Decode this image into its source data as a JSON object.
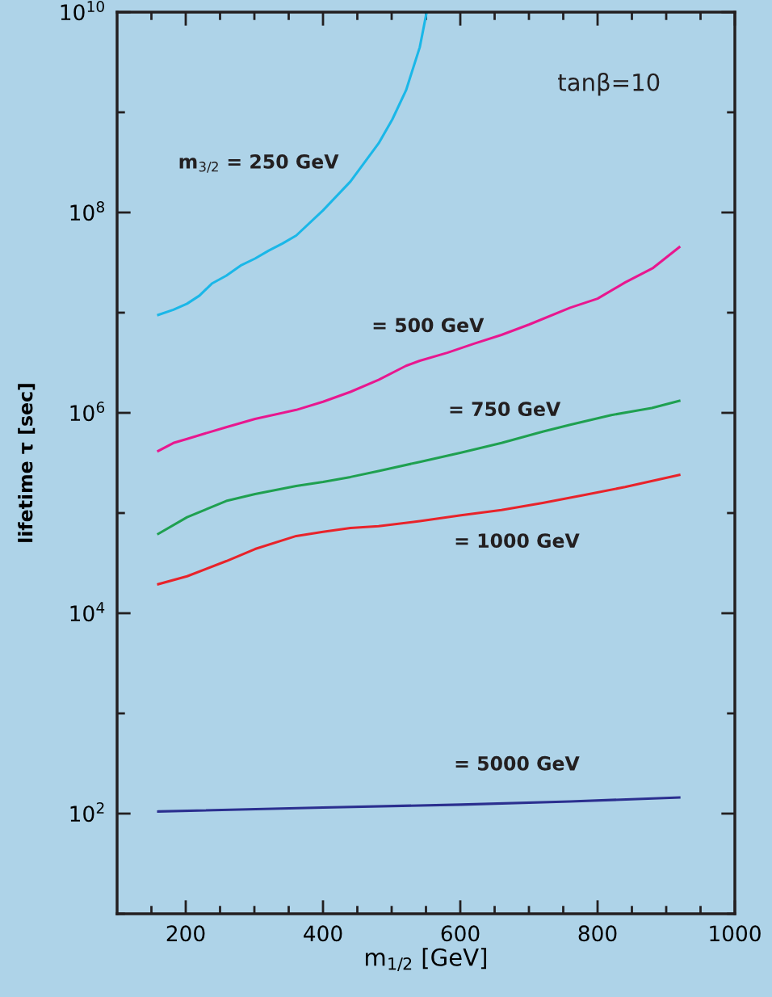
{
  "chart_data": {
    "type": "line",
    "xlabel": "m$_{1/2}$ [GeV]",
    "ylabel": "lifetime τ [sec]",
    "log": "y",
    "grid": false,
    "legend": false,
    "marker": "none",
    "line_style": "solid",
    "xlim": [
      100,
      1000
    ],
    "xticks": [
      {
        "value": 150,
        "label": null
      },
      200,
      {
        "value": 250,
        "label": null
      },
      {
        "value": 300,
        "label": null
      },
      {
        "value": 350,
        "label": null
      },
      400,
      {
        "value": 450,
        "label": null
      },
      {
        "value": 500,
        "label": null
      },
      {
        "value": 550,
        "label": null
      },
      600,
      {
        "value": 650,
        "label": null
      },
      {
        "value": 700,
        "label": null
      },
      {
        "value": 750,
        "label": null
      },
      800,
      {
        "value": 850,
        "label": null
      },
      {
        "value": 900,
        "label": null
      },
      {
        "value": 950,
        "label": null
      },
      1000
    ],
    "ylim": [
      10,
      10000000000.0
    ],
    "yticks": [
      {
        "value": 10,
        "label": null
      },
      {
        "value": 100,
        "label": "10$^{2}$"
      },
      {
        "value": 1000,
        "label": null
      },
      {
        "value": 10000,
        "label": "10$^{4}$"
      },
      {
        "value": 100000,
        "label": null
      },
      {
        "value": 1000000,
        "label": "10$^{6}$"
      },
      {
        "value": 10000000,
        "label": null
      },
      {
        "value": 100000000,
        "label": "10$^{8}$"
      },
      {
        "value": 1000000000,
        "label": null
      },
      {
        "value": 10000000000,
        "label": "10$^{10}$"
      }
    ],
    "series": [
      {
        "name": "m$_{3/2}$ = 250 GeV",
        "color": "#1ab7e8",
        "x": [
          160,
          182,
          202,
          220,
          238,
          259,
          280,
          301,
          321,
          341,
          361,
          400,
          440,
          481,
          501,
          521,
          541,
          551
        ],
        "values": [
          9500000.0,
          10700000.0,
          12300000.0,
          14800000.0,
          19500000.0,
          23400000.0,
          29500000.0,
          34700000.0,
          41700000.0,
          49000000.0,
          58900000.0,
          105000000.0,
          204000000.0,
          490000000.0,
          850000000.0,
          1660000000.0,
          4470000000.0,
          10000000000.0
        ]
      },
      {
        "name": "= 500 GeV",
        "color": "#e8178f",
        "x": [
          160,
          182,
          202,
          259,
          301,
          361,
          400,
          440,
          481,
          521,
          541,
          581,
          620,
          660,
          700,
          760,
          800,
          840,
          881,
          919
        ],
        "values": [
          417000.0,
          500000.0,
          550000.0,
          720000.0,
          870000.0,
          1070000.0,
          1290000.0,
          1620000.0,
          2140000.0,
          2950000.0,
          3310000.0,
          3980000.0,
          4900000.0,
          6000000.0,
          7600000.0,
          11200000.0,
          13800000.0,
          20000000.0,
          28000000.0,
          45000000.0
        ]
      },
      {
        "name": "= 750 GeV",
        "color": "#1fa050",
        "x": [
          160,
          202,
          259,
          301,
          361,
          400,
          440,
          481,
          541,
          601,
          660,
          720,
          760,
          820,
          879,
          919
        ],
        "values": [
          62000.0,
          91000.0,
          132000.0,
          155000.0,
          186000.0,
          204000.0,
          229000.0,
          263000.0,
          324000.0,
          400000.0,
          500000.0,
          650000.0,
          760000.0,
          950000.0,
          1120000.0,
          1320000.0
        ]
      },
      {
        "name": "= 1000 GeV",
        "color": "#e8232a",
        "x": [
          160,
          202,
          259,
          301,
          361,
          400,
          440,
          481,
          541,
          601,
          660,
          720,
          780,
          840,
          919
        ],
        "values": [
          19500.0,
          23400.0,
          33100.0,
          43700.0,
          59000.0,
          65000.0,
          71000.0,
          74000.0,
          83000.0,
          95000.0,
          107000.0,
          126000.0,
          151000.0,
          182000.0,
          240000.0
        ]
      },
      {
        "name": "= 5000 GeV",
        "color": "#2b2f8f",
        "x": [
          160,
          400,
          601,
          760,
          919
        ],
        "values": [
          105,
          115,
          123,
          132,
          145
        ]
      }
    ],
    "annotations": [
      "tanβ=10"
    ]
  }
}
